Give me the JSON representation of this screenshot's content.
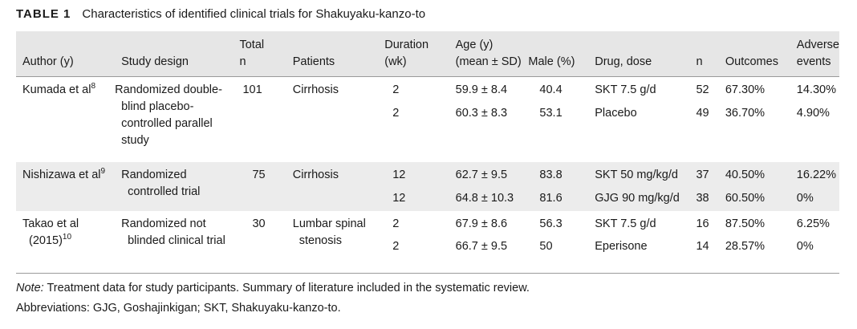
{
  "caption": {
    "label": "TABLE 1",
    "title": "Characteristics of identified clinical trials for Shakuyaku-kanzo-to"
  },
  "headers": {
    "author": "Author (y)",
    "design": "Study design",
    "total_line1": "Total",
    "total_line2": "n",
    "patients": "Patients",
    "duration_line1": "Duration",
    "duration_line2": "(wk)",
    "age_line1": "Age (y)",
    "age_line2": "(mean ± SD)",
    "male": "Male (%)",
    "drug": "Drug, dose",
    "n": "n",
    "outcomes": "Outcomes",
    "adverse_line1": "Adverse",
    "adverse_line2": "events"
  },
  "studies": [
    {
      "author": "Kumada et al",
      "ref": "8",
      "design": "Randomized double-blind placebo-controlled parallel study",
      "total": "101",
      "patients": "Cirrhosis",
      "arms": [
        {
          "duration": "2",
          "age": "59.9 ± 8.4",
          "male": "40.4",
          "drug": "SKT 7.5 g/d",
          "n": "52",
          "outcomes": "67.30%",
          "adverse": "14.30%"
        },
        {
          "duration": "2",
          "age": "60.3 ± 8.3",
          "male": "53.1",
          "drug": "Placebo",
          "n": "49",
          "outcomes": "36.70%",
          "adverse": "4.90%"
        }
      ]
    },
    {
      "author": "Nishizawa et al",
      "ref": "9",
      "design": "Randomized controlled trial",
      "total": "75",
      "patients": "Cirrhosis",
      "arms": [
        {
          "duration": "12",
          "age": "62.7 ± 9.5",
          "male": "83.8",
          "drug": "SKT 50 mg/kg/d",
          "n": "37",
          "outcomes": "40.50%",
          "adverse": "16.22%"
        },
        {
          "duration": "12",
          "age": "64.8 ± 10.3",
          "male": "81.6",
          "drug": "GJG 90 mg/kg/d",
          "n": "38",
          "outcomes": "60.50%",
          "adverse": "0%"
        }
      ]
    },
    {
      "author": "Takao et al (2015)",
      "ref": "10",
      "design": "Randomized not blinded clinical trial",
      "total": "30",
      "patients": "Lumbar spinal stenosis",
      "arms": [
        {
          "duration": "2",
          "age": "67.9 ± 8.6",
          "male": "56.3",
          "drug": "SKT 7.5 g/d",
          "n": "16",
          "outcomes": "87.50%",
          "adverse": "6.25%"
        },
        {
          "duration": "2",
          "age": "66.7 ± 9.5",
          "male": "50",
          "drug": "Eperisone",
          "n": "14",
          "outcomes": "28.57%",
          "adverse": "0%"
        }
      ]
    }
  ],
  "notes": {
    "note_label": "Note:",
    "note_text": " Treatment data for study participants. Summary of literature included in the systematic review.",
    "abbreviations": "Abbreviations: GJG, Goshajinkigan; SKT, Shakuyaku-kanzo-to."
  }
}
